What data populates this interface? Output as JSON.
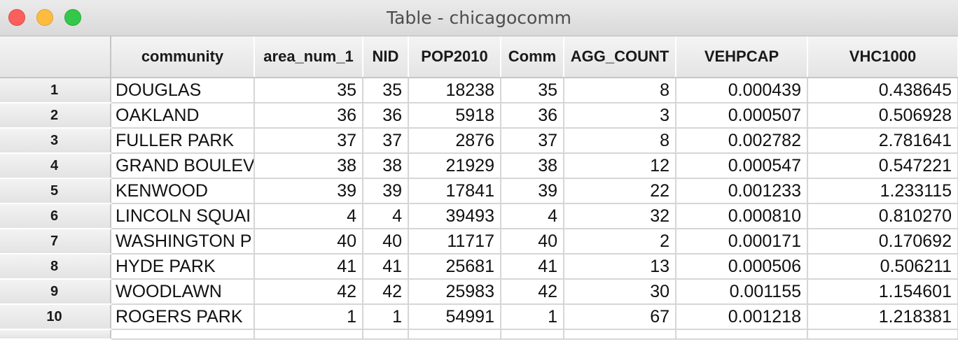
{
  "window": {
    "title": "Table - chicagocomm"
  },
  "table": {
    "columns": [
      "community",
      "area_num_1",
      "NID",
      "POP2010",
      "Comm",
      "AGG_COUNT",
      "VEHPCAP",
      "VHC1000"
    ],
    "rows": [
      {
        "num": "1",
        "community": "DOUGLAS",
        "area_num_1": "35",
        "NID": "35",
        "POP2010": "18238",
        "Comm": "35",
        "AGG_COUNT": "8",
        "VEHPCAP": "0.000439",
        "VHC1000": "0.438645"
      },
      {
        "num": "2",
        "community": "OAKLAND",
        "area_num_1": "36",
        "NID": "36",
        "POP2010": "5918",
        "Comm": "36",
        "AGG_COUNT": "3",
        "VEHPCAP": "0.000507",
        "VHC1000": "0.506928"
      },
      {
        "num": "3",
        "community": "FULLER PARK",
        "area_num_1": "37",
        "NID": "37",
        "POP2010": "2876",
        "Comm": "37",
        "AGG_COUNT": "8",
        "VEHPCAP": "0.002782",
        "VHC1000": "2.781641"
      },
      {
        "num": "4",
        "community": "GRAND BOULEV",
        "area_num_1": "38",
        "NID": "38",
        "POP2010": "21929",
        "Comm": "38",
        "AGG_COUNT": "12",
        "VEHPCAP": "0.000547",
        "VHC1000": "0.547221"
      },
      {
        "num": "5",
        "community": "KENWOOD",
        "area_num_1": "39",
        "NID": "39",
        "POP2010": "17841",
        "Comm": "39",
        "AGG_COUNT": "22",
        "VEHPCAP": "0.001233",
        "VHC1000": "1.233115"
      },
      {
        "num": "6",
        "community": "LINCOLN SQUAI",
        "area_num_1": "4",
        "NID": "4",
        "POP2010": "39493",
        "Comm": "4",
        "AGG_COUNT": "32",
        "VEHPCAP": "0.000810",
        "VHC1000": "0.810270"
      },
      {
        "num": "7",
        "community": "WASHINGTON P",
        "area_num_1": "40",
        "NID": "40",
        "POP2010": "11717",
        "Comm": "40",
        "AGG_COUNT": "2",
        "VEHPCAP": "0.000171",
        "VHC1000": "0.170692"
      },
      {
        "num": "8",
        "community": "HYDE PARK",
        "area_num_1": "41",
        "NID": "41",
        "POP2010": "25681",
        "Comm": "41",
        "AGG_COUNT": "13",
        "VEHPCAP": "0.000506",
        "VHC1000": "0.506211"
      },
      {
        "num": "9",
        "community": "WOODLAWN",
        "area_num_1": "42",
        "NID": "42",
        "POP2010": "25983",
        "Comm": "42",
        "AGG_COUNT": "30",
        "VEHPCAP": "0.001155",
        "VHC1000": "1.154601"
      },
      {
        "num": "10",
        "community": "ROGERS PARK",
        "area_num_1": "1",
        "NID": "1",
        "POP2010": "54991",
        "Comm": "1",
        "AGG_COUNT": "67",
        "VEHPCAP": "0.001218",
        "VHC1000": "1.218381"
      }
    ]
  }
}
